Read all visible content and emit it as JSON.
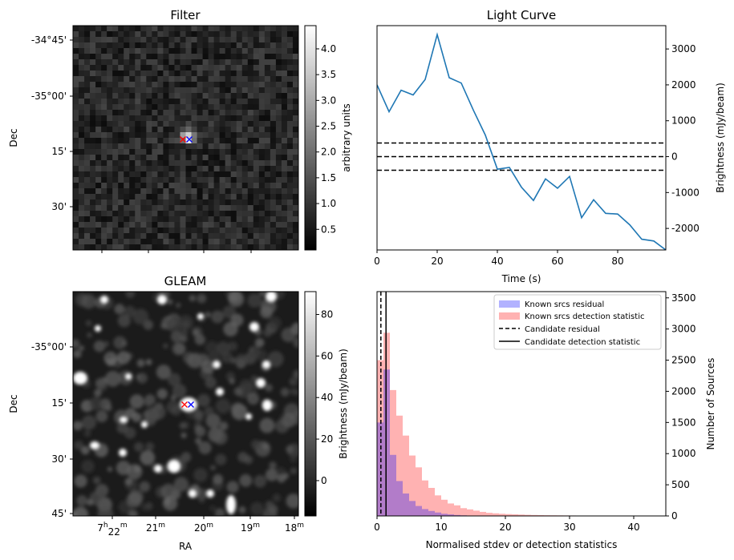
{
  "chart_data": [
    {
      "type": "heatmap",
      "title": "Filter",
      "xlabel": "",
      "ylabel": "Dec",
      "ytick_labels": [
        "-34°45'",
        "-35°00'",
        "15'",
        "30'"
      ],
      "colorbar": {
        "label": "arbitrary units",
        "range": [
          0.1,
          4.45
        ],
        "ticks": [
          0.5,
          1.0,
          1.5,
          2.0,
          2.5,
          3.0,
          3.5,
          4.0
        ],
        "tick_labels": [
          "0.5",
          "1.0",
          "1.5",
          "2.0",
          "2.5",
          "3.0",
          "3.5",
          "4.0"
        ]
      },
      "markers": [
        {
          "symbol": "x",
          "color": "#ff0000"
        },
        {
          "symbol": "x",
          "color": "#0000ff"
        }
      ]
    },
    {
      "type": "line",
      "title": "Light Curve",
      "xlabel": "Time (s)",
      "ylabel": "Brightness (mJy/beam)",
      "xlim": [
        0,
        96
      ],
      "ylim": [
        -2600,
        3650
      ],
      "xticks": [
        0,
        20,
        40,
        60,
        80
      ],
      "yticks": [
        -2000,
        -1000,
        0,
        1000,
        2000,
        3000
      ],
      "x": [
        0,
        4,
        8,
        12,
        16,
        20,
        24,
        28,
        32,
        36,
        40,
        44,
        48,
        52,
        56,
        60,
        64,
        68,
        72,
        76,
        80,
        84,
        88,
        92,
        96
      ],
      "values": [
        2000,
        1250,
        1850,
        1720,
        2150,
        3400,
        2200,
        2050,
        1300,
        600,
        -350,
        -300,
        -850,
        -1220,
        -620,
        -880,
        -550,
        -1700,
        -1200,
        -1580,
        -1600,
        -1900,
        -2300,
        -2350,
        -2600
      ],
      "color": "#1f77b4",
      "hlines": [
        {
          "y": 380,
          "style": "dashed"
        },
        {
          "y": 0,
          "style": "dashed"
        },
        {
          "y": -380,
          "style": "dashed"
        }
      ]
    },
    {
      "type": "heatmap",
      "title": "GLEAM",
      "xlabel": "RA",
      "ylabel": "Dec",
      "ytick_labels": [
        "-35°00'",
        "15'",
        "30'",
        "45'"
      ],
      "xtick_labels": [
        {
          "main": "7",
          "sup1": "h",
          "mid": "22",
          "sup2": "m"
        },
        {
          "main": "21",
          "sup1": "m",
          "mid": "",
          "sup2": ""
        },
        {
          "main": "20",
          "sup1": "m",
          "mid": "",
          "sup2": ""
        },
        {
          "main": "19",
          "sup1": "m",
          "mid": "",
          "sup2": ""
        },
        {
          "main": "18",
          "sup1": "m",
          "mid": "",
          "sup2": ""
        }
      ],
      "colorbar": {
        "label": "Brightness (mJy/beam)",
        "range": [
          -17,
          91
        ],
        "ticks": [
          0,
          20,
          40,
          60,
          80
        ],
        "tick_labels": [
          "0",
          "20",
          "40",
          "60",
          "80"
        ]
      },
      "markers": [
        {
          "symbol": "x",
          "color": "#ff0000"
        },
        {
          "symbol": "x",
          "color": "#0000ff"
        }
      ]
    },
    {
      "type": "bar",
      "subtype": "histogram",
      "title": "",
      "xlabel": "Normalised stdev or detection statistics",
      "ylabel": "Number of Sources",
      "xlim": [
        0,
        45
      ],
      "ylim": [
        0,
        3600
      ],
      "xticks": [
        0,
        10,
        20,
        30,
        40
      ],
      "yticks": [
        0,
        500,
        1000,
        1500,
        2000,
        2500,
        3000,
        3500
      ],
      "bin_width": 1,
      "series": [
        {
          "name": "Known srcs residual",
          "color": "#0000ff",
          "alpha": 0.3,
          "bin_starts": [
            0,
            1,
            2,
            3,
            4,
            5,
            6,
            7,
            8,
            9,
            10,
            11,
            12,
            13,
            14
          ],
          "values": [
            1500,
            2350,
            980,
            560,
            360,
            240,
            160,
            110,
            80,
            55,
            35,
            25,
            15,
            10,
            5
          ]
        },
        {
          "name": "Known srcs detection statistic",
          "color": "#ff0000",
          "alpha": 0.3,
          "bin_starts": [
            0,
            1,
            2,
            3,
            4,
            5,
            6,
            7,
            8,
            9,
            10,
            11,
            12,
            13,
            14,
            15,
            16,
            17,
            18,
            19,
            20,
            21,
            22,
            23,
            24,
            25,
            26,
            27,
            28,
            29,
            30,
            31,
            32,
            33,
            34,
            35,
            36,
            37,
            38,
            39,
            40,
            41,
            42,
            43,
            44
          ],
          "values": [
            2500,
            2940,
            2020,
            1610,
            1290,
            970,
            780,
            570,
            450,
            330,
            260,
            200,
            170,
            125,
            105,
            85,
            65,
            50,
            42,
            35,
            30,
            26,
            22,
            18,
            15,
            13,
            11,
            10,
            9,
            8,
            7,
            6,
            6,
            5,
            5,
            4,
            4,
            4,
            3,
            3,
            3,
            3,
            2,
            2,
            2
          ]
        }
      ],
      "vlines": [
        {
          "name": "Candidate residual",
          "x": 0.6,
          "style": "dashed"
        },
        {
          "name": "Candidate detection statistic",
          "x": 1.4,
          "style": "solid"
        }
      ],
      "legend": "top-right"
    }
  ]
}
